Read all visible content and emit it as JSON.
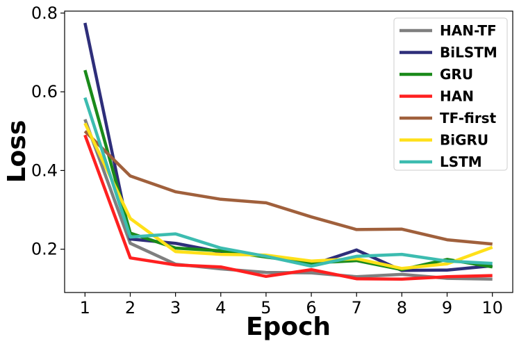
{
  "chart_data": {
    "type": "line",
    "xlabel": "Epoch",
    "ylabel": "Loss",
    "x": [
      1,
      2,
      3,
      4,
      5,
      6,
      7,
      8,
      9,
      10
    ],
    "xticks": [
      "1",
      "2",
      "3",
      "4",
      "5",
      "6",
      "7",
      "8",
      "9",
      "10"
    ],
    "yticks": [
      "0.2",
      "0.4",
      "0.6",
      "0.8"
    ],
    "ylim": [
      0.09,
      0.805
    ],
    "xlim": [
      0.55,
      10.45
    ],
    "grid": false,
    "legend_position": "top-right",
    "series": [
      {
        "name": "HAN-TF",
        "color": "#7f7f7f",
        "values": [
          0.53,
          0.215,
          0.162,
          0.15,
          0.141,
          0.14,
          0.13,
          0.136,
          0.126,
          0.124
        ]
      },
      {
        "name": "BiLSTM",
        "color": "#2e2e7a",
        "values": [
          0.775,
          0.226,
          0.215,
          0.193,
          0.183,
          0.16,
          0.198,
          0.146,
          0.147,
          0.158
        ]
      },
      {
        "name": "GRU",
        "color": "#1a8a1a",
        "values": [
          0.655,
          0.241,
          0.203,
          0.196,
          0.18,
          0.165,
          0.171,
          0.148,
          0.174,
          0.155
        ]
      },
      {
        "name": "HAN",
        "color": "#ff2020",
        "values": [
          0.49,
          0.178,
          0.16,
          0.155,
          0.131,
          0.148,
          0.125,
          0.124,
          0.13,
          0.133
        ]
      },
      {
        "name": "TF-first",
        "color": "#a0603c",
        "values": [
          0.5,
          0.386,
          0.346,
          0.327,
          0.318,
          0.282,
          0.25,
          0.251,
          0.224,
          0.213
        ]
      },
      {
        "name": "BiGRU",
        "color": "#ffe019",
        "values": [
          0.52,
          0.278,
          0.194,
          0.187,
          0.185,
          0.17,
          0.176,
          0.151,
          0.163,
          0.205
        ]
      },
      {
        "name": "LSTM",
        "color": "#3cbcb0",
        "values": [
          0.585,
          0.231,
          0.239,
          0.203,
          0.182,
          0.157,
          0.182,
          0.187,
          0.17,
          0.164
        ]
      }
    ]
  }
}
